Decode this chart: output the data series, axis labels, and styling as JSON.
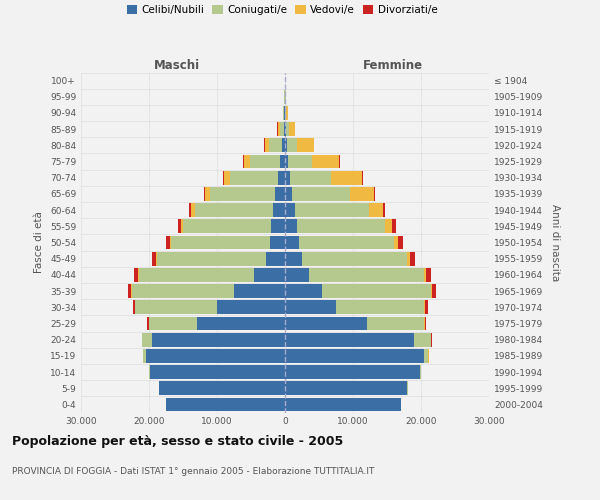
{
  "age_groups": [
    "0-4",
    "5-9",
    "10-14",
    "15-19",
    "20-24",
    "25-29",
    "30-34",
    "35-39",
    "40-44",
    "45-49",
    "50-54",
    "55-59",
    "60-64",
    "65-69",
    "70-74",
    "75-79",
    "80-84",
    "85-89",
    "90-94",
    "95-99",
    "100+"
  ],
  "birth_years": [
    "2000-2004",
    "1995-1999",
    "1990-1994",
    "1985-1989",
    "1980-1984",
    "1975-1979",
    "1970-1974",
    "1965-1969",
    "1960-1964",
    "1955-1959",
    "1950-1954",
    "1945-1949",
    "1940-1944",
    "1935-1939",
    "1930-1934",
    "1925-1929",
    "1920-1924",
    "1915-1919",
    "1910-1914",
    "1905-1909",
    "≤ 1904"
  ],
  "males": {
    "celibi": [
      17500,
      18500,
      19800,
      20500,
      19500,
      13000,
      10000,
      7500,
      4500,
      2800,
      2200,
      2000,
      1800,
      1500,
      1100,
      700,
      400,
      200,
      80,
      30,
      10
    ],
    "coniugati": [
      20,
      50,
      150,
      400,
      1500,
      7000,
      12000,
      15000,
      17000,
      16000,
      14500,
      13000,
      11500,
      9500,
      7000,
      4500,
      2000,
      600,
      200,
      60,
      20
    ],
    "vedovi": [
      0,
      1,
      2,
      5,
      10,
      30,
      50,
      80,
      100,
      150,
      200,
      300,
      500,
      700,
      900,
      900,
      600,
      300,
      80,
      20,
      5
    ],
    "divorziati": [
      0,
      2,
      5,
      20,
      80,
      200,
      350,
      500,
      550,
      600,
      600,
      500,
      350,
      200,
      100,
      50,
      20,
      10,
      5,
      2,
      1
    ]
  },
  "females": {
    "nubili": [
      17000,
      18000,
      19800,
      20500,
      19000,
      12000,
      7500,
      5500,
      3500,
      2500,
      2000,
      1700,
      1400,
      1100,
      800,
      500,
      300,
      150,
      60,
      25,
      10
    ],
    "coniugate": [
      25,
      60,
      180,
      600,
      2500,
      8500,
      13000,
      16000,
      17000,
      15500,
      14000,
      13000,
      11000,
      8500,
      6000,
      3500,
      1500,
      500,
      150,
      50,
      15
    ],
    "vedove": [
      0,
      1,
      2,
      5,
      10,
      30,
      60,
      100,
      200,
      400,
      600,
      1000,
      2000,
      3500,
      4500,
      4000,
      2500,
      800,
      200,
      40,
      10
    ],
    "divorziate": [
      0,
      2,
      5,
      20,
      80,
      200,
      400,
      600,
      700,
      700,
      700,
      600,
      350,
      200,
      100,
      50,
      20,
      10,
      5,
      2,
      1
    ]
  },
  "colors": {
    "celibi": "#3a6ea5",
    "coniugati": "#b5c98e",
    "vedovi": "#f0b942",
    "divorziati": "#cc2222"
  },
  "xlim": 30000,
  "title": "Popolazione per età, sesso e stato civile - 2005",
  "subtitle": "PROVINCIA DI FOGGIA - Dati ISTAT 1° gennaio 2005 - Elaborazione TUTTITALIA.IT",
  "ylabel_left": "Fasce di età",
  "ylabel_right": "Anni di nascita",
  "legend_labels": [
    "Celibi/Nubili",
    "Coniugati/e",
    "Vedovi/e",
    "Divorziati/e"
  ],
  "bg_color": "#f2f2f2",
  "grid_color": "#cccccc"
}
